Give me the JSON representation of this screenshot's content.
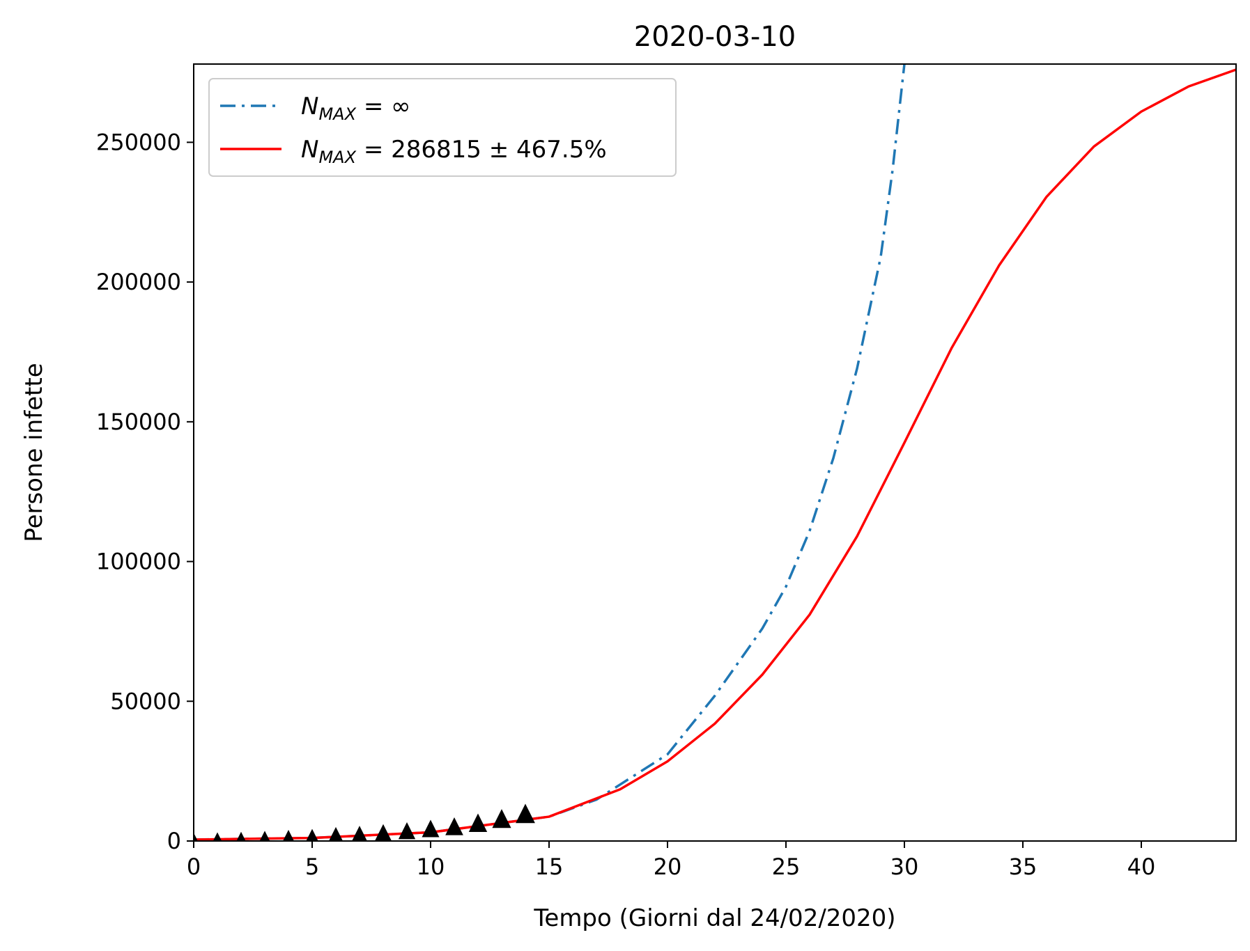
{
  "chart_data": {
    "type": "line",
    "title": "2020-03-10",
    "xlabel": "Tempo (Giorni dal 24/02/2020)",
    "ylabel": "Persone infette",
    "xlim": [
      0,
      44
    ],
    "ylim": [
      0,
      278000
    ],
    "xticks": [
      0,
      5,
      10,
      15,
      20,
      25,
      30,
      35,
      40
    ],
    "yticks": [
      0,
      50000,
      100000,
      150000,
      200000,
      250000
    ],
    "grid": false,
    "legend_position": "top-left",
    "series": [
      {
        "name_main": "N",
        "name_sub": "MAX",
        "name_rest": " = ∞",
        "style": "dashdot",
        "color": "#1f77b4",
        "x": [
          0,
          5,
          10,
          15,
          17,
          20,
          22,
          24,
          25,
          26,
          27,
          28,
          29,
          29.5,
          30
        ],
        "y": [
          500,
          1100,
          3100,
          8700,
          14800,
          31000,
          52000,
          76000,
          91000,
          111000,
          137000,
          169000,
          209000,
          240000,
          278000
        ]
      },
      {
        "name_main": "N",
        "name_sub": "MAX",
        "name_rest": " = 286815 ± 467.5%",
        "style": "solid",
        "color": "#ff0000",
        "x": [
          0,
          5,
          10,
          15,
          18,
          20,
          22,
          24,
          26,
          28,
          30,
          32,
          34,
          36,
          38,
          40,
          42,
          44
        ],
        "y": [
          500,
          1100,
          3100,
          8700,
          18500,
          28500,
          42000,
          59500,
          81000,
          109000,
          142500,
          176500,
          206000,
          230500,
          248500,
          261000,
          270000,
          276000
        ]
      },
      {
        "name": "",
        "style": "markers",
        "marker": "triangle",
        "color": "#000000",
        "x": [
          0,
          1,
          2,
          3,
          4,
          5,
          6,
          7,
          8,
          9,
          10,
          11,
          12,
          13,
          14
        ],
        "y": [
          229,
          322,
          400,
          650,
          888,
          1128,
          1694,
          2036,
          2502,
          3089,
          3858,
          4636,
          5883,
          7375,
          9172
        ]
      }
    ]
  }
}
